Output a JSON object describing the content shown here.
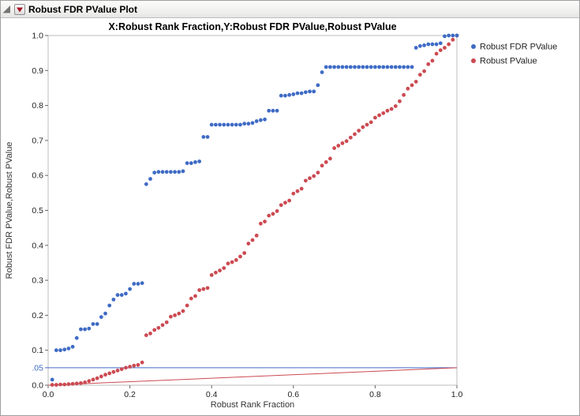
{
  "window": {
    "title": "Robust FDR PValue Plot",
    "collapse_icon": "outline-collapse-icon",
    "menu_icon": "red-triangle-menu-icon"
  },
  "chart_data": {
    "type": "scatter",
    "title": "X:Robust Rank Fraction,Y:Robust FDR PValue,Robust PValue",
    "xlabel": "Robust Rank Fraction",
    "ylabel": "Robust FDR PValue,Robust PValue",
    "xlim": [
      0,
      1
    ],
    "ylim": [
      0,
      1
    ],
    "grid": false,
    "x_ticks": [
      {
        "v": 0.0,
        "label": "0.0"
      },
      {
        "v": 0.2,
        "label": "0.2"
      },
      {
        "v": 0.4,
        "label": "0.4"
      },
      {
        "v": 0.6,
        "label": "0.6"
      },
      {
        "v": 0.8,
        "label": "0.8"
      },
      {
        "v": 1.0,
        "label": "1.0"
      }
    ],
    "y_ticks": [
      {
        "v": 1.0,
        "label": "1.0"
      },
      {
        "v": 0.9,
        "label": "0.9"
      },
      {
        "v": 0.8,
        "label": "0.8"
      },
      {
        "v": 0.7,
        "label": "0.7"
      },
      {
        "v": 0.6,
        "label": "0.6"
      },
      {
        "v": 0.5,
        "label": "0.5"
      },
      {
        "v": 0.4,
        "label": "0.4"
      },
      {
        "v": 0.3,
        "label": "0.3"
      },
      {
        "v": 0.2,
        "label": "0.2"
      },
      {
        "v": 0.1,
        "label": "0.1"
      },
      {
        "v": 0.05,
        "label": ".05",
        "color": "#3F6BC5"
      },
      {
        "v": 0.0,
        "label": "0.0"
      }
    ],
    "legend": {
      "position": "right",
      "items": [
        {
          "label": "Robust FDR PValue",
          "color": "#3F6BC5"
        },
        {
          "label": "Robust PValue",
          "color": "#CC4A52"
        }
      ]
    },
    "reference_lines": [
      {
        "name": "alpha-threshold-line",
        "color": "#3F6BC5",
        "from": [
          0,
          0.05
        ],
        "to": [
          1,
          0.05
        ]
      },
      {
        "name": "bh-threshold-line",
        "color": "#CC4A52",
        "from": [
          0,
          0
        ],
        "to": [
          1,
          0.05
        ]
      }
    ],
    "x": [
      0.01,
      0.02,
      0.03,
      0.04,
      0.05,
      0.06,
      0.07,
      0.08,
      0.09,
      0.1,
      0.11,
      0.12,
      0.13,
      0.14,
      0.15,
      0.16,
      0.17,
      0.18,
      0.19,
      0.2,
      0.21,
      0.22,
      0.23,
      0.24,
      0.25,
      0.26,
      0.27,
      0.28,
      0.29,
      0.3,
      0.31,
      0.32,
      0.33,
      0.34,
      0.35,
      0.36,
      0.37,
      0.38,
      0.39,
      0.4,
      0.41,
      0.42,
      0.43,
      0.44,
      0.45,
      0.46,
      0.47,
      0.48,
      0.49,
      0.5,
      0.51,
      0.52,
      0.53,
      0.54,
      0.55,
      0.56,
      0.57,
      0.58,
      0.59,
      0.6,
      0.61,
      0.62,
      0.63,
      0.64,
      0.65,
      0.66,
      0.67,
      0.68,
      0.69,
      0.7,
      0.71,
      0.72,
      0.73,
      0.74,
      0.75,
      0.76,
      0.77,
      0.78,
      0.79,
      0.8,
      0.81,
      0.82,
      0.83,
      0.84,
      0.85,
      0.86,
      0.87,
      0.88,
      0.89,
      0.9,
      0.91,
      0.92,
      0.93,
      0.94,
      0.95,
      0.96,
      0.97,
      0.98,
      0.99,
      1.0
    ],
    "series": [
      {
        "name": "Robust FDR PValue",
        "color": "#3F6BC5",
        "values": [
          0.016,
          0.1,
          0.1,
          0.102,
          0.105,
          0.11,
          0.135,
          0.16,
          0.16,
          0.162,
          0.175,
          0.175,
          0.195,
          0.205,
          0.228,
          0.245,
          0.258,
          0.258,
          0.262,
          0.275,
          0.29,
          0.29,
          0.292,
          0.575,
          0.59,
          0.608,
          0.61,
          0.61,
          0.61,
          0.61,
          0.61,
          0.61,
          0.612,
          0.635,
          0.635,
          0.638,
          0.64,
          0.71,
          0.71,
          0.745,
          0.745,
          0.745,
          0.745,
          0.745,
          0.745,
          0.745,
          0.745,
          0.748,
          0.748,
          0.75,
          0.755,
          0.758,
          0.76,
          0.785,
          0.785,
          0.785,
          0.828,
          0.828,
          0.83,
          0.832,
          0.835,
          0.835,
          0.838,
          0.84,
          0.84,
          0.858,
          0.895,
          0.91,
          0.91,
          0.91,
          0.91,
          0.91,
          0.91,
          0.91,
          0.91,
          0.91,
          0.91,
          0.91,
          0.91,
          0.91,
          0.91,
          0.91,
          0.91,
          0.91,
          0.91,
          0.91,
          0.91,
          0.91,
          0.91,
          0.965,
          0.97,
          0.972,
          0.975,
          0.975,
          0.975,
          0.978,
          0.998,
          1.0,
          1.0,
          1.0
        ]
      },
      {
        "name": "Robust PValue",
        "color": "#CC4A52",
        "values": [
          0.001,
          0.001,
          0.002,
          0.002,
          0.003,
          0.004,
          0.005,
          0.006,
          0.008,
          0.012,
          0.016,
          0.02,
          0.025,
          0.03,
          0.034,
          0.038,
          0.042,
          0.046,
          0.05,
          0.053,
          0.056,
          0.058,
          0.065,
          0.143,
          0.148,
          0.158,
          0.164,
          0.172,
          0.18,
          0.196,
          0.2,
          0.205,
          0.212,
          0.228,
          0.248,
          0.255,
          0.272,
          0.275,
          0.278,
          0.315,
          0.322,
          0.328,
          0.335,
          0.348,
          0.352,
          0.358,
          0.368,
          0.378,
          0.405,
          0.415,
          0.428,
          0.462,
          0.468,
          0.485,
          0.49,
          0.498,
          0.515,
          0.522,
          0.528,
          0.548,
          0.555,
          0.562,
          0.585,
          0.592,
          0.598,
          0.608,
          0.628,
          0.638,
          0.648,
          0.678,
          0.685,
          0.692,
          0.698,
          0.708,
          0.718,
          0.728,
          0.738,
          0.745,
          0.752,
          0.765,
          0.772,
          0.778,
          0.785,
          0.79,
          0.798,
          0.812,
          0.83,
          0.848,
          0.858,
          0.868,
          0.888,
          0.898,
          0.918,
          0.928,
          0.948,
          0.958,
          0.965,
          0.975,
          0.988,
          1.0
        ]
      }
    ]
  }
}
